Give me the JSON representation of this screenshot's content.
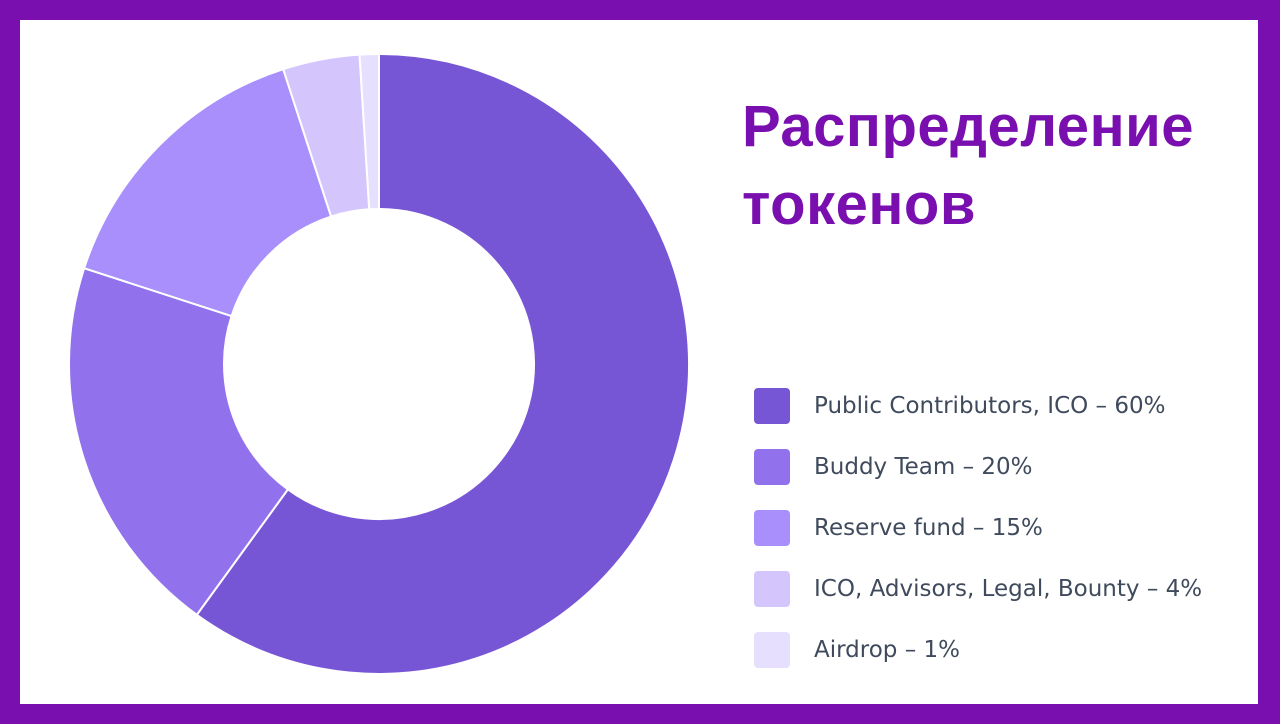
{
  "title": {
    "line1": "Распределение",
    "line2": "токенов",
    "color": "#7a0fb0"
  },
  "chart_data": {
    "type": "pie",
    "variant": "donut",
    "slices": [
      {
        "label": "Public Contributors, ICO – 60%",
        "value": 60,
        "color": "#7756d6"
      },
      {
        "label": "Buddy Team – 20%",
        "value": 20,
        "color": "#9172ec"
      },
      {
        "label": "Reserve fund – 15%",
        "value": 15,
        "color": "#a88ffb"
      },
      {
        "label": "ICO, Advisors, Legal, Bounty – 4%",
        "value": 4,
        "color": "#d4c6fd"
      },
      {
        "label": "Airdrop – 1%",
        "value": 1,
        "color": "#e6dffd"
      }
    ],
    "legend_position": "right"
  }
}
